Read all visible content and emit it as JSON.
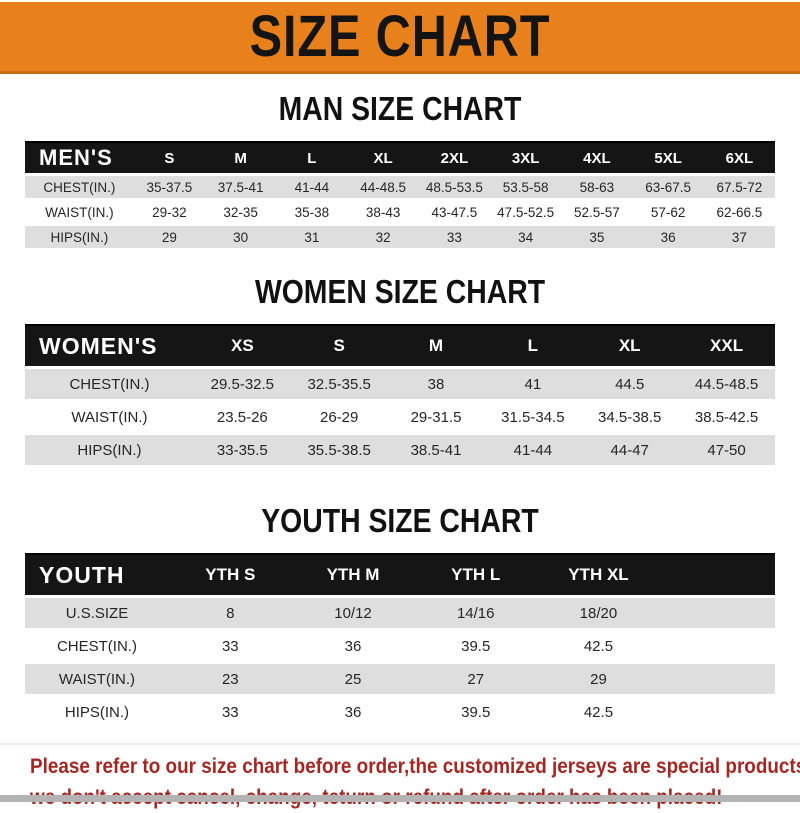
{
  "banner": {
    "title": "SIZE CHART"
  },
  "sections": [
    {
      "heading": "MAN SIZE CHART",
      "table": {
        "header_label": "MEN'S",
        "columns": [
          "S",
          "M",
          "L",
          "XL",
          "2XL",
          "3XL",
          "4XL",
          "5XL",
          "6XL"
        ],
        "rows": [
          {
            "label": "CHEST(IN.)",
            "values": [
              "35-37.5",
              "37.5-41",
              "41-44",
              "44-48.5",
              "48.5-53.5",
              "53.5-58",
              "58-63",
              "63-67.5",
              "67.5-72"
            ]
          },
          {
            "label": "WAIST(IN.)",
            "values": [
              "29-32",
              "32-35",
              "35-38",
              "38-43",
              "43-47.5",
              "47.5-52.5",
              "52.5-57",
              "57-62",
              "62-66.5"
            ]
          },
          {
            "label": "HIPS(IN.)",
            "values": [
              "29",
              "30",
              "31",
              "32",
              "33",
              "34",
              "35",
              "36",
              "37"
            ]
          }
        ]
      }
    },
    {
      "heading": "WOMEN SIZE CHART",
      "table": {
        "header_label": "WOMEN'S",
        "columns": [
          "XS",
          "S",
          "M",
          "L",
          "XL",
          "XXL"
        ],
        "rows": [
          {
            "label": "CHEST(IN.)",
            "values": [
              "29.5-32.5",
              "32.5-35.5",
              "38",
              "41",
              "44.5",
              "44.5-48.5"
            ]
          },
          {
            "label": "WAIST(IN.)",
            "values": [
              "23.5-26",
              "26-29",
              "29-31.5",
              "31.5-34.5",
              "34.5-38.5",
              "38.5-42.5"
            ]
          },
          {
            "label": "HIPS(IN.)",
            "values": [
              "33-35.5",
              "35.5-38.5",
              "38.5-41",
              "41-44",
              "44-47",
              "47-50"
            ]
          }
        ]
      }
    },
    {
      "heading": "YOUTH SIZE CHART",
      "table": {
        "header_label": "YOUTH",
        "columns": [
          "YTH S",
          "YTH M",
          "YTH L",
          "YTH XL"
        ],
        "rows": [
          {
            "label": "U.S.SIZE",
            "values": [
              "8",
              "10/12",
              "14/16",
              "18/20"
            ]
          },
          {
            "label": "CHEST(IN.)",
            "values": [
              "33",
              "36",
              "39.5",
              "42.5"
            ]
          },
          {
            "label": "WAIST(IN.)",
            "values": [
              "23",
              "25",
              "27",
              "29"
            ]
          },
          {
            "label": "HIPS(IN.)",
            "values": [
              "33",
              "36",
              "39.5",
              "42.5"
            ]
          }
        ]
      }
    }
  ],
  "disclaimer": {
    "line1": "Please refer to our size chart before order,the customized jerseys are special products,",
    "line2": "we don't accept cancel, change, teturn or refund after order has been placed!"
  },
  "colors": {
    "banner_bg": "#E8811C",
    "banner_border": "#C96E10",
    "table_header_bg": "#151515",
    "table_header_text": "#FFFFFF",
    "row_alt_bg": "#DEDEDE",
    "row_bg": "#FFFFFF",
    "cell_text": "#262626",
    "disclaimer_text": "#A32824",
    "bottom_strip": "#B3B3B3"
  }
}
